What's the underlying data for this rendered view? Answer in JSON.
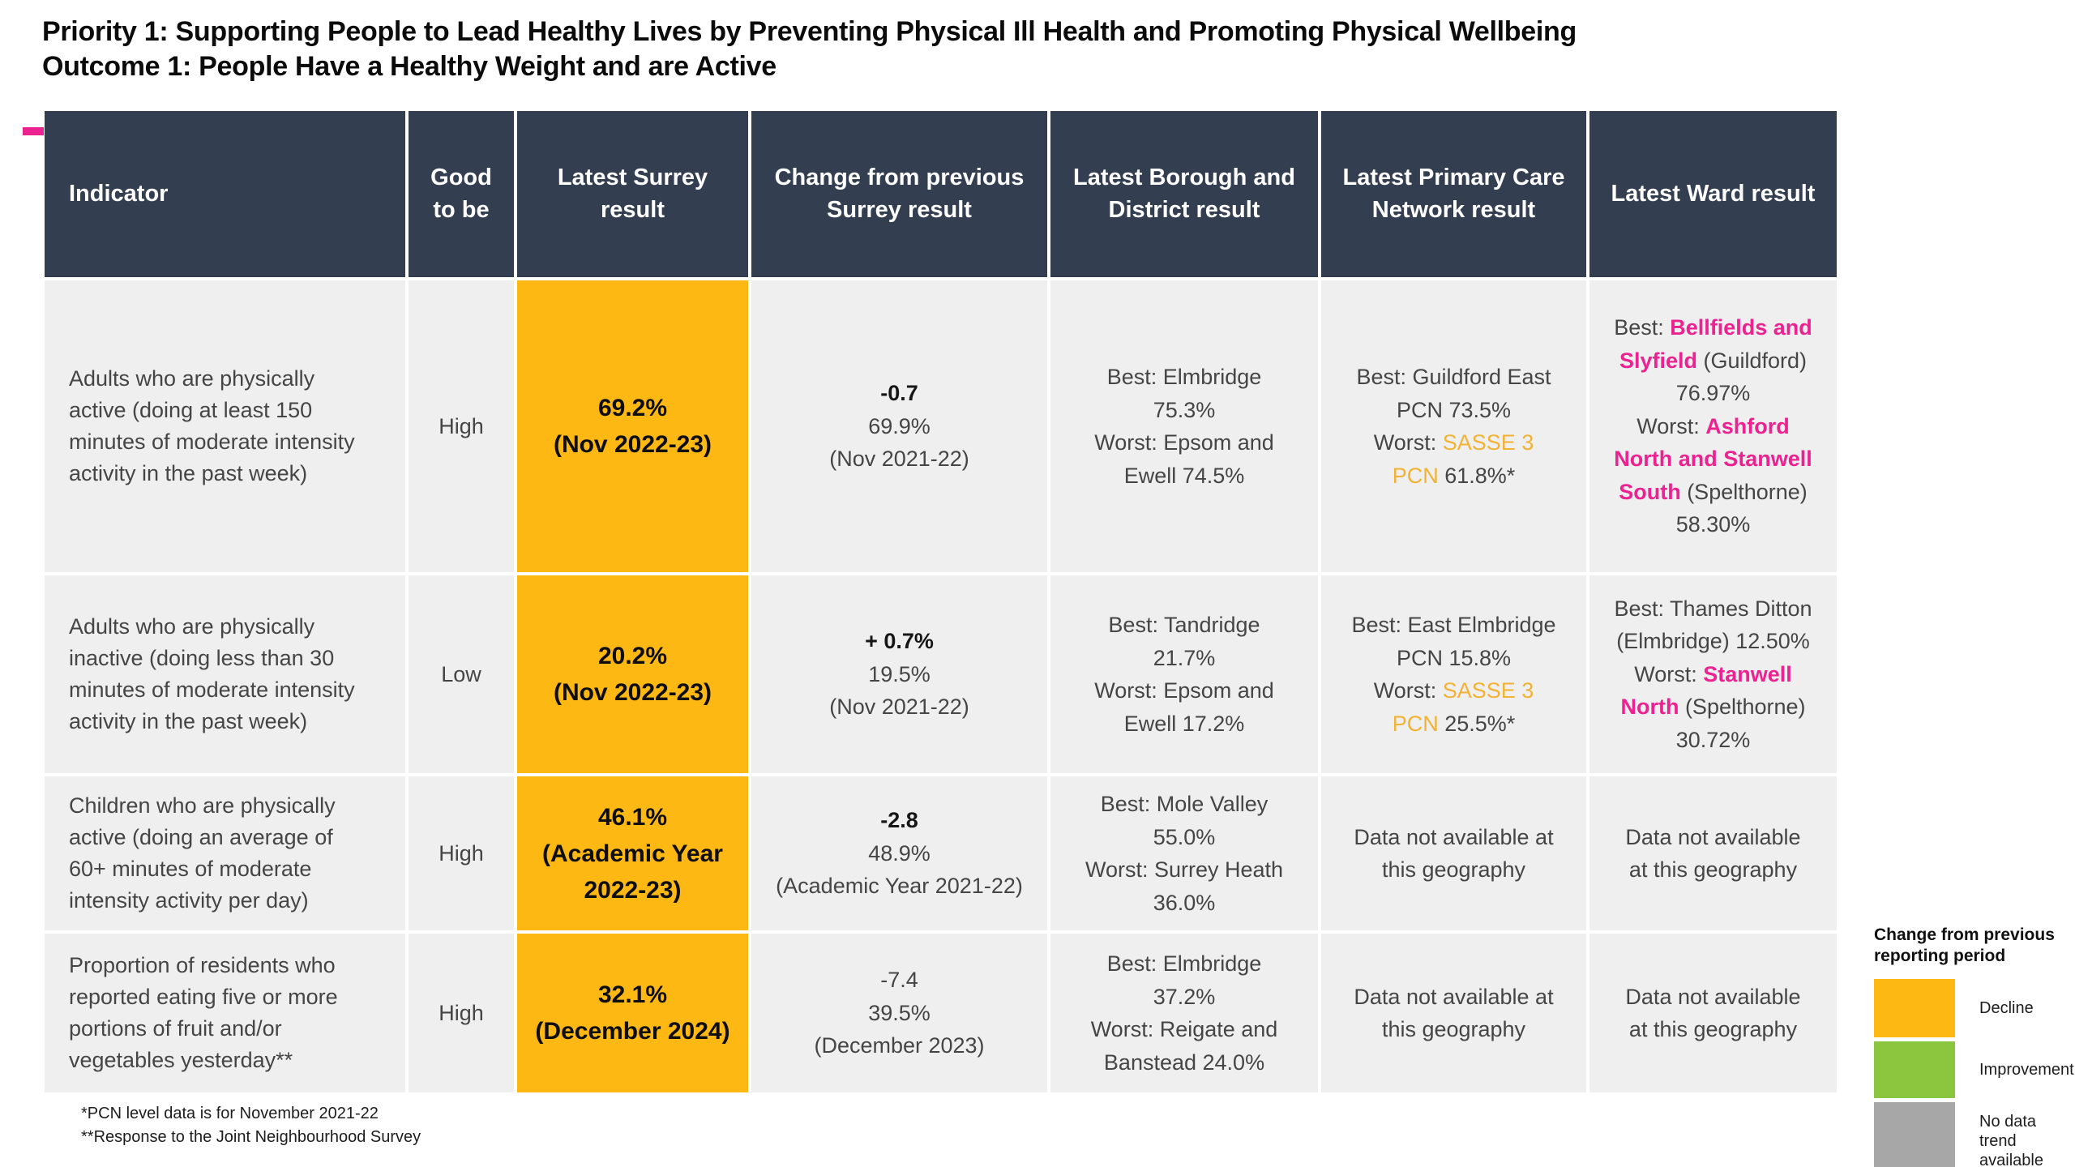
{
  "page": {
    "title_line1": "Priority 1: Supporting People to Lead Healthy Lives by Preventing Physical Ill Health and Promoting Physical Wellbeing",
    "title_line2": "Outcome 1: People Have a Healthy Weight and are Active"
  },
  "colors": {
    "header_bg": "#333E50",
    "cell_bg": "#EFEFEF",
    "decline_orange": "#FDB813",
    "improvement_green": "#8CC63F",
    "no_data_gray": "#A7A7A7",
    "ward_pink": "#EC2290",
    "pcn_yellow": "#F2B234",
    "accent_dash_pink": "#EC2290"
  },
  "table": {
    "headers": [
      "Indicator",
      "Good to be",
      "Latest Surrey result",
      "Change from previous Surrey result",
      "Latest Borough and District result",
      "Latest Primary Care Network result",
      "Latest Ward result"
    ],
    "rows": [
      {
        "indicator": "Adults who are physically active (doing at least 150 minutes of moderate intensity activity in the past week)",
        "good_to_be": "High",
        "surrey": {
          "value": "69.2%",
          "period": "(Nov 2022-23)"
        },
        "change": [
          {
            "t": "-0.7",
            "b": true
          },
          {
            "t": "69.9%"
          },
          {
            "t": "(Nov 2021-22)"
          }
        ],
        "borough": [
          [
            {
              "t": "Best: Elmbridge 75.3%"
            }
          ],
          [
            {
              "t": "Worst: Epsom and Ewell 74.5%"
            }
          ]
        ],
        "pcn": [
          [
            {
              "t": "Best: Guildford East PCN 73.5%"
            }
          ],
          [
            {
              "t": "Worst: "
            },
            {
              "t": "SASSE 3 PCN",
              "c": "yellow"
            },
            {
              "t": " 61.8%*"
            }
          ]
        ],
        "ward": [
          [
            {
              "t": "Best: "
            },
            {
              "t": "Bellfields and Slyfield",
              "c": "pink"
            },
            {
              "t": " (Guildford) 76.97%"
            }
          ],
          [
            {
              "t": "Worst: "
            },
            {
              "t": "Ashford North and Stanwell South",
              "c": "pink"
            },
            {
              "t": " (Spelthorne) 58.30%"
            }
          ]
        ]
      },
      {
        "indicator": "Adults who are physically inactive (doing less than 30 minutes of moderate intensity activity in the past week)",
        "good_to_be": "Low",
        "surrey": {
          "value": "20.2%",
          "period": "(Nov 2022-23)"
        },
        "change": [
          {
            "t": "+ 0.7%",
            "b": true
          },
          {
            "t": "19.5%"
          },
          {
            "t": "(Nov 2021-22)"
          }
        ],
        "borough": [
          [
            {
              "t": "Best: Tandridge 21.7%"
            }
          ],
          [
            {
              "t": "Worst: Epsom and Ewell 17.2%"
            }
          ]
        ],
        "pcn": [
          [
            {
              "t": "Best: East Elmbridge PCN 15.8%"
            }
          ],
          [
            {
              "t": "Worst: "
            },
            {
              "t": "SASSE 3 PCN",
              "c": "yellow"
            },
            {
              "t": " 25.5%*"
            }
          ]
        ],
        "ward": [
          [
            {
              "t": "Best: Thames Ditton (Elmbridge) 12.50%"
            }
          ],
          [
            {
              "t": "Worst: "
            },
            {
              "t": "Stanwell North",
              "c": "pink"
            },
            {
              "t": " (Spelthorne) 30.72%"
            }
          ]
        ]
      },
      {
        "indicator": "Children who are physically active (doing an average of 60+ minutes of moderate intensity activity per day)",
        "good_to_be": "High",
        "surrey": {
          "value": "46.1%",
          "period": "(Academic Year 2022-23)"
        },
        "change": [
          {
            "t": "-2.8",
            "b": true
          },
          {
            "t": "48.9%"
          },
          {
            "t": "(Academic Year 2021-22)"
          }
        ],
        "borough": [
          [
            {
              "t": "Best: Mole Valley 55.0%"
            }
          ],
          [
            {
              "t": "Worst: Surrey Heath 36.0%"
            }
          ]
        ],
        "pcn": [
          [
            {
              "t": "Data not available at this geography"
            }
          ]
        ],
        "ward": [
          [
            {
              "t": "Data not available at this geography"
            }
          ]
        ]
      },
      {
        "indicator": "Proportion of residents who reported eating five or more portions of fruit and/or vegetables yesterday**",
        "good_to_be": "High",
        "surrey": {
          "value": "32.1%",
          "period": "(December 2024)"
        },
        "change": [
          {
            "t": "-7.4"
          },
          {
            "t": "39.5%"
          },
          {
            "t": "(December 2023)"
          }
        ],
        "borough": [
          [
            {
              "t": "Best: Elmbridge 37.2%"
            }
          ],
          [
            {
              "t": "Worst: Reigate and Banstead 24.0%"
            }
          ]
        ],
        "pcn": [
          [
            {
              "t": "Data not available at this geography"
            }
          ]
        ],
        "ward": [
          [
            {
              "t": "Data not available at this geography"
            }
          ]
        ]
      }
    ]
  },
  "footnotes": [
    "*PCN level data is for November 2021-22",
    "**Response to the Joint Neighbourhood Survey"
  ],
  "legend": {
    "title": "Change from previous reporting period",
    "items": [
      {
        "label": "Decline",
        "color": "#FDB813"
      },
      {
        "label": "Improvement",
        "color": "#8CC63F"
      },
      {
        "label": "No data trend available",
        "color": "#A7A7A7"
      }
    ]
  }
}
